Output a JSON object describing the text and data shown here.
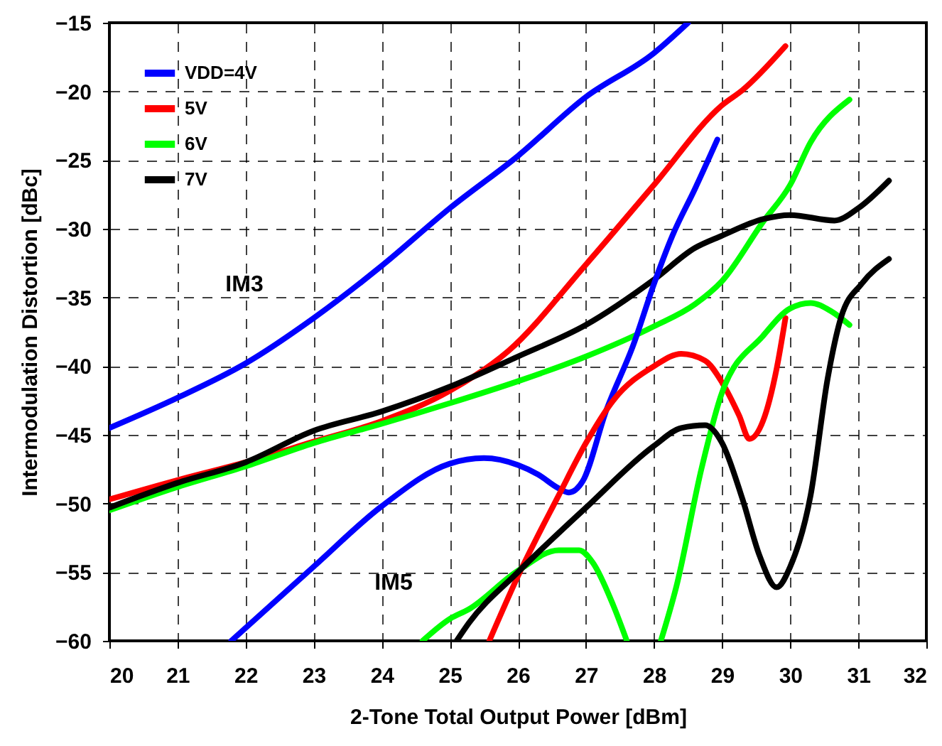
{
  "chart_data": {
    "type": "line",
    "xlabel": "2-Tone Total Output Power  [dBm]",
    "ylabel": "Intermodulation Distortion  [dBc]",
    "xlim": [
      20,
      32
    ],
    "xticks": [
      20,
      21,
      22,
      23,
      24,
      25,
      26,
      27,
      28,
      29,
      30,
      31,
      32
    ],
    "ylim": [
      -60,
      -15
    ],
    "yticks": [
      -60,
      -55,
      -50,
      -45,
      -40,
      -35,
      -30,
      -25,
      -20,
      -15
    ],
    "grid": true,
    "legend": "top left",
    "line_style": "solid",
    "marker": "none",
    "annotations": [
      "IM3",
      "IM5"
    ],
    "series": [
      {
        "name": "VDD=4V",
        "color": "#0000ff",
        "x": [
          20,
          21,
          22,
          23,
          24,
          25,
          26,
          27,
          28,
          28.5
        ],
        "values": [
          -44.5,
          -42.3,
          -39.8,
          -36.5,
          -32.7,
          -28.5,
          -24.7,
          -20.4,
          -17.2,
          -15
        ]
      },
      {
        "name": "5V",
        "color": "#ff0000",
        "x": [
          20,
          21,
          22,
          23,
          24,
          25,
          25.86,
          27,
          28,
          29,
          29.3,
          29.93
        ],
        "values": [
          -49.7,
          -48.3,
          -47,
          -45.5,
          -44,
          -41.8,
          -38.9,
          -32.6,
          -26.8,
          -21,
          -19.9,
          -16.7
        ]
      },
      {
        "name": "6V",
        "color": "#00ff00",
        "x": [
          20,
          21,
          22,
          23,
          24,
          25,
          26,
          27,
          28,
          28.6,
          29,
          29.6,
          30,
          30.3,
          30.87
        ],
        "values": [
          -50.5,
          -48.8,
          -47.3,
          -45.6,
          -44.2,
          -42.7,
          -41.1,
          -39.3,
          -37.1,
          -35.5,
          -33.8,
          -29.5,
          -26.8,
          -23.7,
          -20.6
        ]
      },
      {
        "name": "7V",
        "color": "#000000",
        "x": [
          20,
          21,
          22,
          23,
          24,
          25,
          26,
          27,
          28,
          28.6,
          29,
          29.6,
          30,
          30.65,
          31,
          31.45
        ],
        "values": [
          -50.3,
          -48.5,
          -47,
          -44.7,
          -43.3,
          -41.5,
          -39.3,
          -37,
          -33.7,
          -31.4,
          -30.5,
          -29.3,
          -29,
          -29.4,
          -28.5,
          -26.5
        ]
      },
      {
        "color": "#0000ff",
        "x": [
          21.79,
          23,
          24,
          25,
          25.5,
          26,
          26.3,
          26.6,
          26.75,
          26.95,
          27.3,
          27.7,
          28,
          28.27,
          28.6,
          28.93
        ],
        "values": [
          -60,
          -54.6,
          -50.2,
          -47.1,
          -46.7,
          -47.2,
          -47.9,
          -48.9,
          -49.2,
          -48.4,
          -43.2,
          -38.4,
          -34,
          -30.5,
          -27.1,
          -23.5
        ]
      },
      {
        "color": "#ff0000",
        "x": [
          25.58,
          26,
          26.6,
          27,
          27.4,
          28,
          28.4,
          28.75,
          29,
          29.25,
          29.4,
          29.6,
          29.8,
          29.93
        ],
        "values": [
          -60,
          -55.3,
          -49.4,
          -45.6,
          -42.5,
          -40,
          -39.1,
          -39.6,
          -41.2,
          -43.6,
          -45.3,
          -44,
          -40.2,
          -36.5
        ]
      },
      {
        "color": "#00ff00",
        "x": [
          24.6,
          25,
          25.28,
          26,
          26.6,
          26.9,
          27.1,
          27.4,
          27.6,
          27.85,
          28.1,
          28.33,
          28.7,
          29,
          29.6,
          30,
          30.3,
          30.6,
          30.87
        ],
        "values": [
          -60,
          -58.4,
          -57.7,
          -54.9,
          -53.4,
          -53.4,
          -54.3,
          -57.4,
          -60,
          null,
          -60,
          -56,
          -47.4,
          -41.9,
          -37.8,
          -35.8,
          -35.4,
          -36,
          -37
        ]
      },
      {
        "color": "#000000",
        "x": [
          25.1,
          25.28,
          26,
          27,
          28,
          28.4,
          28.75,
          29,
          29.3,
          29.55,
          29.8,
          30,
          30.3,
          30.55,
          30.75,
          31.05,
          31.45
        ],
        "values": [
          -60,
          -58.7,
          -55,
          -50.3,
          -45.8,
          -44.5,
          -44.3,
          -45.6,
          -49.7,
          -53.8,
          -56.1,
          -54.6,
          -49.4,
          -40.9,
          -36.4,
          -34,
          -32.2
        ]
      }
    ]
  }
}
